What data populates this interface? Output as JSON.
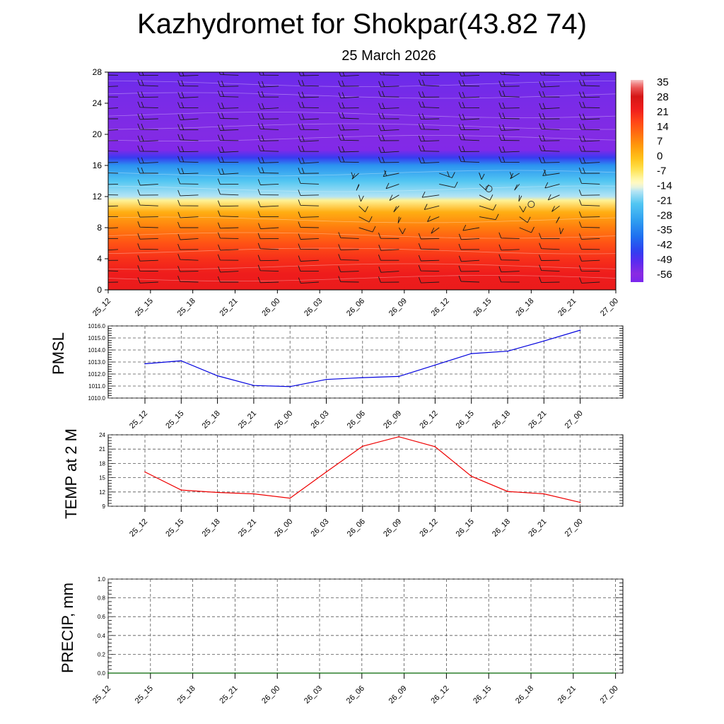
{
  "title": "Kazhydromet for Shokpar(43.82 74)",
  "subtitle": "25 March 2026",
  "chart_data": [
    {
      "type": "heatmap",
      "name": "upper-air-cross-section",
      "x": [
        "25_12",
        "25_15",
        "25_18",
        "25_21",
        "26_00",
        "26_03",
        "26_06",
        "26_09",
        "26_12",
        "26_15",
        "26_18",
        "26_21",
        "27_00"
      ],
      "y_ticks": [
        0,
        4,
        8,
        12,
        16,
        20,
        24,
        28
      ],
      "ylim": [
        0,
        28
      ],
      "colorbar": {
        "labels": [
          "35",
          "28",
          "21",
          "14",
          "7",
          "0",
          "-7",
          "-14",
          "-21",
          "-28",
          "-35",
          "-42",
          "-49",
          "-56"
        ],
        "range": [
          -60,
          38
        ]
      },
      "temperature_profile": [
        {
          "level": 0,
          "value": 25
        },
        {
          "level": 2,
          "value": 24
        },
        {
          "level": 4,
          "value": 21
        },
        {
          "level": 6,
          "value": 16
        },
        {
          "level": 8,
          "value": 10
        },
        {
          "level": 10,
          "value": 3
        },
        {
          "level": 11.5,
          "value": -9
        },
        {
          "level": 12,
          "value": -16
        },
        {
          "level": 14,
          "value": -22
        },
        {
          "level": 16,
          "value": -32
        },
        {
          "level": 17,
          "value": -46
        },
        {
          "level": 18,
          "value": -58
        },
        {
          "level": 20,
          "value": -55
        },
        {
          "level": 24,
          "value": -54
        },
        {
          "level": 28,
          "value": -52
        }
      ],
      "calm_markers": [
        {
          "x": "26_15",
          "level": 13
        },
        {
          "x": "26_18",
          "level": 11
        }
      ],
      "wind_barbs": true
    },
    {
      "type": "line",
      "name": "pmsl",
      "ylabel": "PMSL",
      "x": [
        "25_12",
        "25_15",
        "25_18",
        "25_21",
        "26_00",
        "26_03",
        "26_06",
        "26_09",
        "26_12",
        "26_15",
        "26_18",
        "26_21",
        "27_00"
      ],
      "yticks": [
        "1010.0",
        "1011.0",
        "1012.0",
        "1013.0",
        "1014.0",
        "1015.0",
        "1016.0"
      ],
      "ylim": [
        1010,
        1016
      ],
      "series": [
        {
          "values": [
            1012.85,
            1013.1,
            1011.85,
            1011.05,
            1010.95,
            1011.55,
            1011.7,
            1011.8,
            1012.75,
            1013.7,
            1013.9,
            1014.75,
            1015.65
          ],
          "color": "#0000dd"
        }
      ]
    },
    {
      "type": "line",
      "name": "temp",
      "ylabel": "TEMP at 2 M",
      "x": [
        "25_12",
        "25_15",
        "25_18",
        "25_21",
        "26_00",
        "26_03",
        "26_06",
        "26_09",
        "26_12",
        "26_15",
        "26_18",
        "26_21",
        "27_00"
      ],
      "yticks": [
        "9",
        "12",
        "15",
        "18",
        "21",
        "24"
      ],
      "ylim": [
        9,
        24
      ],
      "series": [
        {
          "values": [
            16.2,
            12.4,
            11.9,
            11.6,
            10.7,
            16.2,
            21.6,
            23.6,
            21.5,
            15.3,
            12.1,
            11.6,
            9.8
          ],
          "color": "#ee0000"
        }
      ]
    },
    {
      "type": "line",
      "name": "precip",
      "ylabel": "PRECIP, mm",
      "x": [
        "25_12",
        "25_15",
        "25_18",
        "25_21",
        "26_00",
        "26_03",
        "26_06",
        "26_09",
        "26_12",
        "26_15",
        "26_18",
        "26_21",
        "27_00"
      ],
      "yticks": [
        "0.0",
        "0.2",
        "0.4",
        "0.6",
        "0.8",
        "1.0"
      ],
      "ylim": [
        0,
        1
      ],
      "series": [
        {
          "values": [
            0,
            0,
            0,
            0,
            0,
            0,
            0,
            0,
            0,
            0,
            0,
            0,
            0
          ],
          "color": "#006400"
        }
      ]
    }
  ]
}
